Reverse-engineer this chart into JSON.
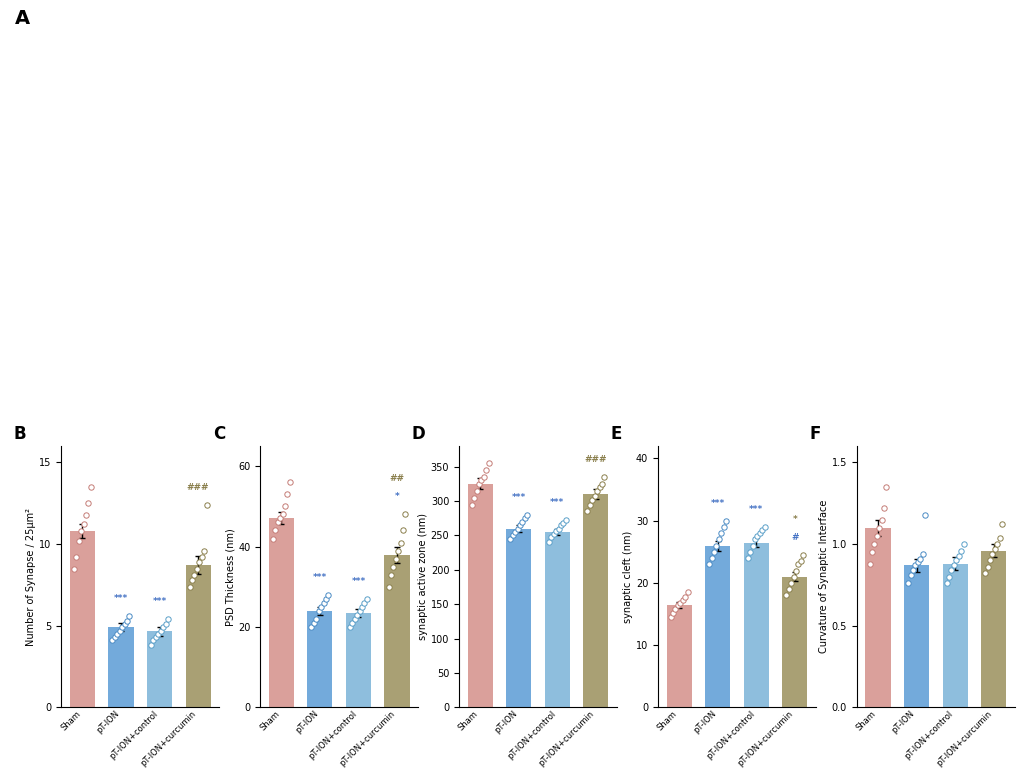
{
  "groups": [
    "Sham",
    "pT-ION",
    "pT-ION+control",
    "pT-ION+curcumin"
  ],
  "bar_colors": [
    "#d4908a",
    "#5b9bd5",
    "#7ab3d8",
    "#9a8f5c"
  ],
  "dot_colors_edge": [
    "#c47c76",
    "#4a8bc4",
    "#5a9fc8",
    "#8a7f4c"
  ],
  "panels": {
    "B": {
      "label": "B",
      "ylabel": "Number of Synapse / 25μm²",
      "ylim": [
        0,
        16
      ],
      "yticks": [
        0,
        5,
        10,
        15
      ],
      "means": [
        10.8,
        4.9,
        4.65,
        8.7
      ],
      "sems": [
        0.45,
        0.25,
        0.25,
        0.55
      ],
      "dots": [
        [
          8.5,
          9.2,
          10.2,
          10.8,
          11.2,
          11.8,
          12.5,
          13.5
        ],
        [
          4.1,
          4.3,
          4.5,
          4.7,
          4.9,
          5.1,
          5.3,
          5.6
        ],
        [
          3.8,
          4.1,
          4.3,
          4.5,
          4.7,
          4.9,
          5.1,
          5.4
        ],
        [
          7.4,
          7.8,
          8.1,
          8.5,
          8.9,
          9.2,
          9.6,
          12.4
        ]
      ],
      "sig_vs_sham": [
        "",
        "***",
        "***",
        ""
      ],
      "sig_vs_pTION": [
        "",
        "",
        "",
        "###"
      ]
    },
    "C": {
      "label": "C",
      "ylabel": "PSD Thickness (nm)",
      "ylim": [
        0,
        65
      ],
      "yticks": [
        0,
        20,
        40,
        60
      ],
      "means": [
        47.0,
        24.0,
        23.5,
        38.0
      ],
      "sems": [
        1.5,
        1.0,
        1.0,
        2.0
      ],
      "dots": [
        [
          42,
          44,
          46,
          47,
          48,
          50,
          53,
          56
        ],
        [
          20,
          21,
          22,
          24,
          25,
          26,
          27,
          28
        ],
        [
          20,
          21,
          22,
          23,
          24,
          25,
          26,
          27
        ],
        [
          30,
          33,
          35,
          37,
          39,
          41,
          44,
          48
        ]
      ],
      "sig_vs_sham": [
        "",
        "***",
        "***",
        "*"
      ],
      "sig_vs_pTION": [
        "",
        "",
        "",
        "##"
      ]
    },
    "D": {
      "label": "D",
      "ylabel": "synaptic active zone (nm)",
      "ylim": [
        0,
        380
      ],
      "yticks": [
        0,
        50,
        100,
        150,
        200,
        250,
        300,
        350
      ],
      "means": [
        325,
        260,
        255,
        310
      ],
      "sems": [
        8,
        5,
        5,
        7
      ],
      "dots": [
        [
          295,
          305,
          315,
          325,
          330,
          335,
          345,
          355
        ],
        [
          245,
          250,
          255,
          260,
          265,
          270,
          275,
          280
        ],
        [
          240,
          248,
          252,
          256,
          260,
          265,
          268,
          272
        ],
        [
          285,
          295,
          302,
          308,
          315,
          320,
          325,
          335
        ]
      ],
      "sig_vs_sham": [
        "",
        "***",
        "***",
        ""
      ],
      "sig_vs_pTION": [
        "",
        "",
        "",
        "###"
      ]
    },
    "E": {
      "label": "E",
      "ylabel": "synaptic cleft (nm)",
      "ylim": [
        0,
        42
      ],
      "yticks": [
        0,
        10,
        20,
        30,
        40
      ],
      "means": [
        16.5,
        26.0,
        26.5,
        21.0
      ],
      "sems": [
        0.5,
        0.8,
        0.8,
        0.7
      ],
      "dots": [
        [
          14.5,
          15.2,
          15.8,
          16.4,
          16.8,
          17.2,
          17.8,
          18.5
        ],
        [
          23,
          24,
          25,
          26,
          27,
          28,
          29,
          30
        ],
        [
          24,
          25,
          26,
          27,
          27.5,
          28,
          28.5,
          29
        ],
        [
          18,
          19,
          20,
          21,
          22,
          23,
          23.5,
          24.5
        ]
      ],
      "sig_vs_sham": [
        "",
        "***",
        "***",
        "#"
      ],
      "sig_vs_pTION": [
        "",
        "",
        "",
        "*"
      ]
    },
    "F": {
      "label": "F",
      "ylabel": "Curvature of Synaptic Interface",
      "ylim": [
        0.0,
        1.6
      ],
      "yticks": [
        0.0,
        0.5,
        1.0,
        1.5
      ],
      "means": [
        1.1,
        0.87,
        0.88,
        0.96
      ],
      "sems": [
        0.05,
        0.04,
        0.04,
        0.04
      ],
      "dots": [
        [
          0.88,
          0.95,
          1.0,
          1.05,
          1.1,
          1.15,
          1.22,
          1.35
        ],
        [
          0.76,
          0.81,
          0.84,
          0.87,
          0.89,
          0.91,
          0.94,
          1.18
        ],
        [
          0.76,
          0.8,
          0.84,
          0.87,
          0.9,
          0.93,
          0.96,
          1.0
        ],
        [
          0.82,
          0.86,
          0.9,
          0.94,
          0.97,
          1.0,
          1.04,
          1.12
        ]
      ],
      "sig_vs_sham": [
        "",
        "",
        "",
        ""
      ],
      "sig_vs_pTION": [
        "",
        "",
        "",
        ""
      ]
    }
  },
  "panel_order": [
    "B",
    "C",
    "D",
    "E",
    "F"
  ],
  "sig_color_sham": "#4472c4",
  "sig_color_pTION": "#8a7f4c"
}
